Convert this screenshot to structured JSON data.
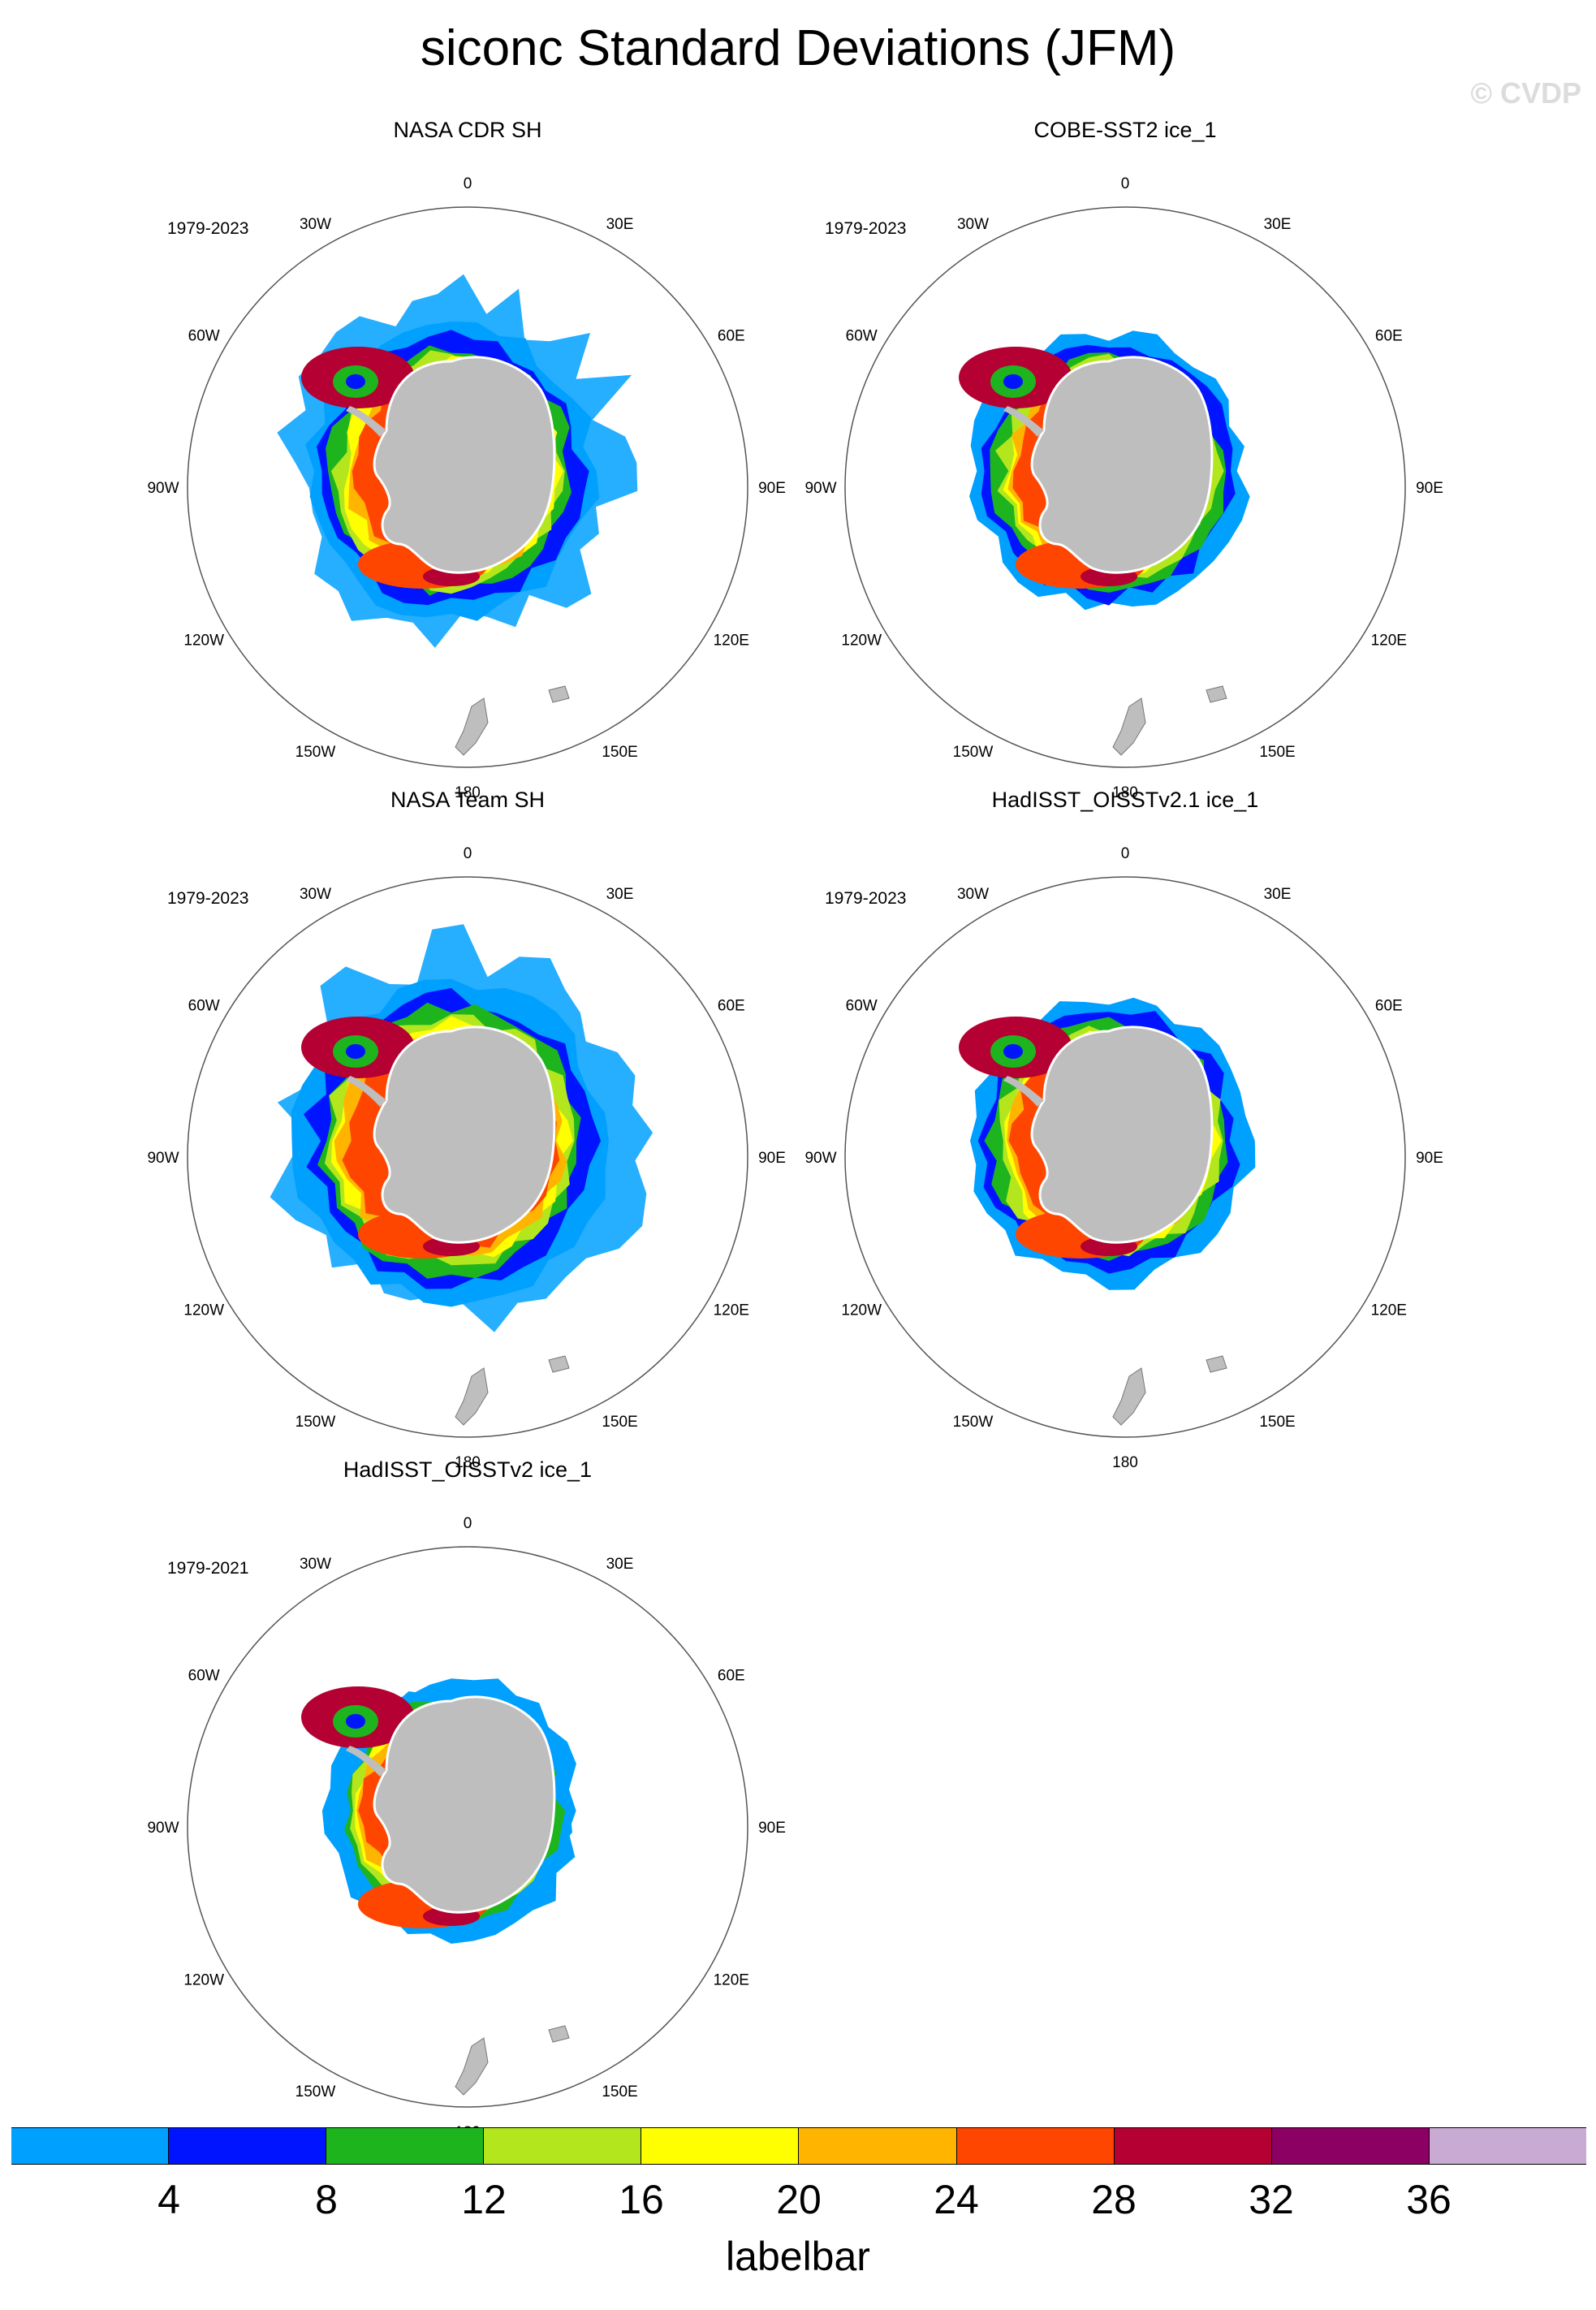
{
  "title": "siconc Standard Deviations (JFM)",
  "watermark": "© CVDP",
  "lon_labels": [
    "0",
    "30E",
    "60E",
    "90E",
    "120E",
    "150E",
    "180",
    "150W",
    "120W",
    "90W",
    "60W",
    "30W"
  ],
  "panels": [
    {
      "title": "NASA CDR SH",
      "period": "1979-2023",
      "variant": 0
    },
    {
      "title": "COBE-SST2 ice_1",
      "period": "1979-2023",
      "variant": 1
    },
    {
      "title": "NASA Team SH",
      "period": "1979-2023",
      "variant": 2
    },
    {
      "title": "HadISST_OISSTv2.1 ice_1",
      "period": "1979-2023",
      "variant": 3
    },
    {
      "title": "HadISST_OISSTv2 ice_1",
      "period": "1979-2021",
      "variant": 4
    }
  ],
  "colorbar": {
    "colors": [
      "#00a0ff",
      "#0014ff",
      "#1eb41e",
      "#b4e61e",
      "#ffff00",
      "#ffb400",
      "#ff4600",
      "#b40032",
      "#8c0064",
      "#c8aad2"
    ],
    "ticks": [
      "4",
      "8",
      "12",
      "16",
      "20",
      "24",
      "28",
      "32",
      "36"
    ],
    "caption": "labelbar"
  },
  "land_color": "#bebebe"
}
